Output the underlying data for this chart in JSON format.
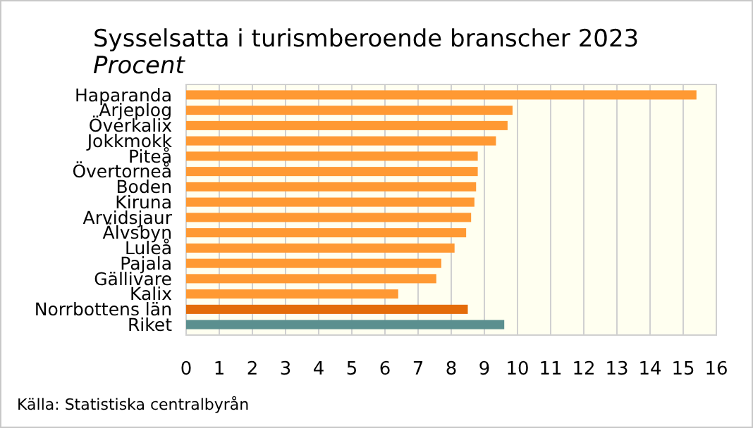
{
  "chart_data": {
    "type": "bar",
    "orientation": "horizontal",
    "title": "Sysselsatta i turismberoende branscher 2023",
    "subtitle": "Procent",
    "categories": [
      "Haparanda",
      "Arjeplog",
      "Överkalix",
      "Jokkmokk",
      "Piteå",
      "Övertorneå",
      "Boden",
      "Kiruna",
      "Arvidsjaur",
      "Älvsbyn",
      "Luleå",
      "Pajala",
      "Gällivare",
      "Kalix",
      "Norrbottens län",
      "Riket"
    ],
    "values": [
      15.4,
      9.85,
      9.7,
      9.35,
      8.8,
      8.8,
      8.75,
      8.7,
      8.6,
      8.45,
      8.1,
      7.7,
      7.55,
      6.4,
      8.5,
      9.6
    ],
    "colors": [
      "#ff9933",
      "#ff9933",
      "#ff9933",
      "#ff9933",
      "#ff9933",
      "#ff9933",
      "#ff9933",
      "#ff9933",
      "#ff9933",
      "#ff9933",
      "#ff9933",
      "#ff9933",
      "#ff9933",
      "#ff9933",
      "#e46c0a",
      "#5b8f8f"
    ],
    "xlim": [
      0,
      16
    ],
    "xticks": [
      0,
      1,
      2,
      3,
      4,
      5,
      6,
      7,
      8,
      9,
      10,
      11,
      12,
      13,
      14,
      15,
      16
    ],
    "grid": "x",
    "annotations": [
      "Källa: Statistiska centralbyrån"
    ]
  }
}
